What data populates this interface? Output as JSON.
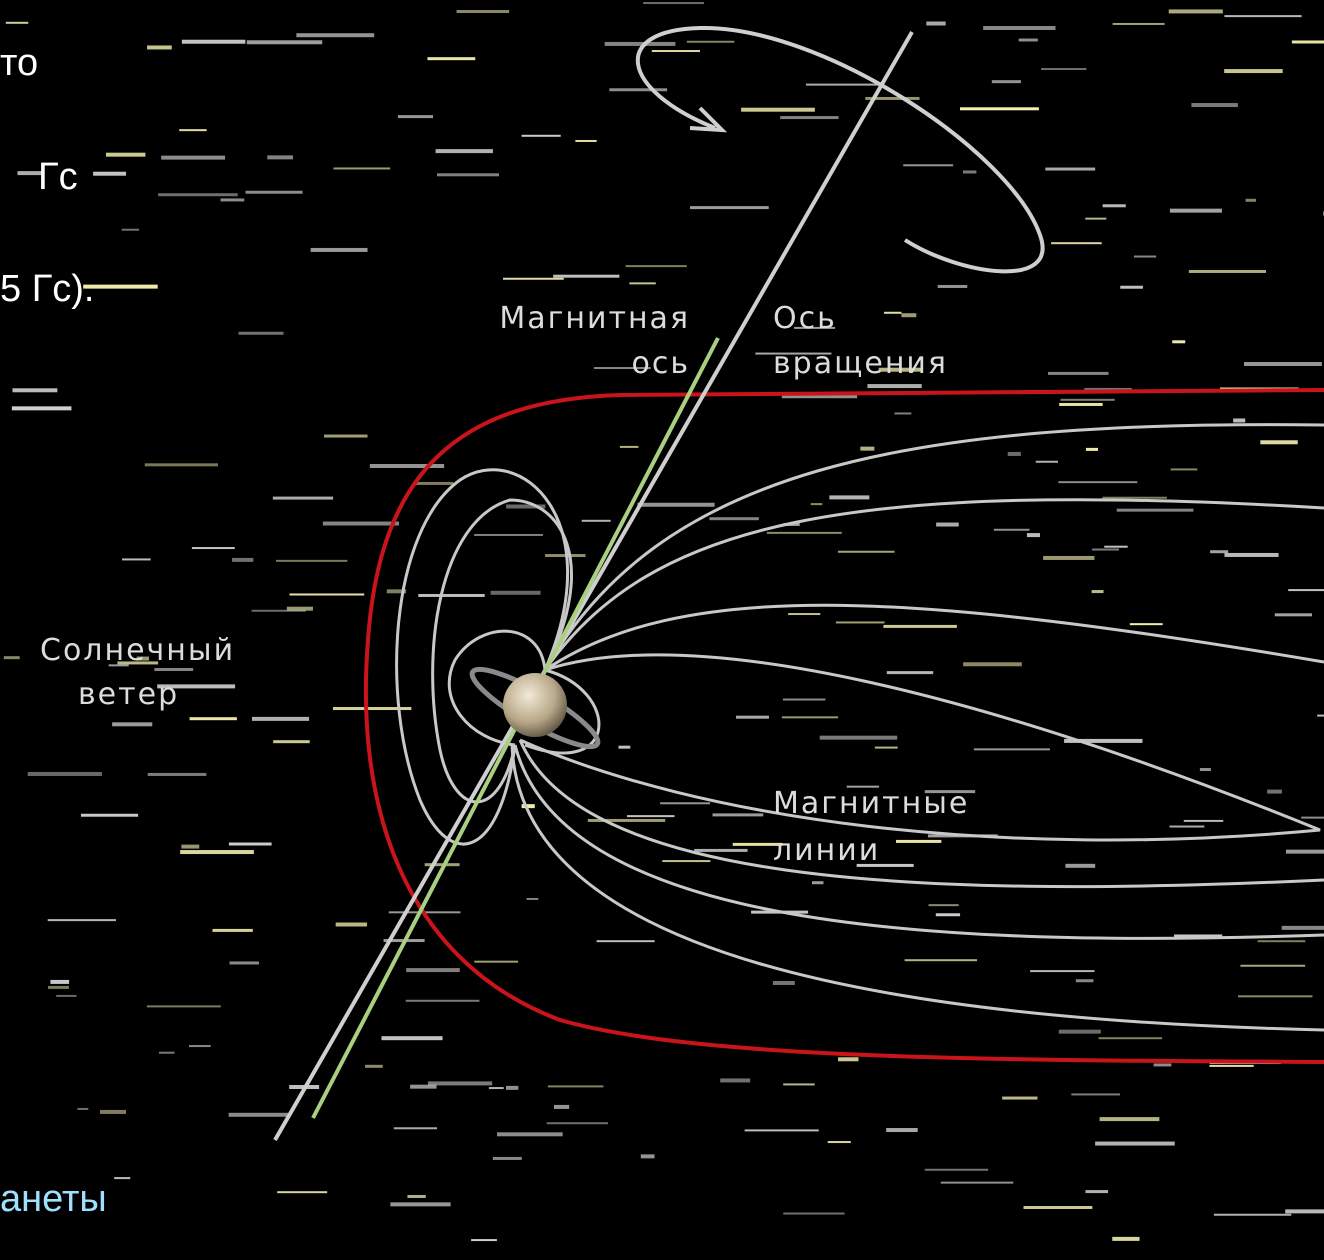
{
  "slide_text": {
    "line1": "то",
    "line2": "Гс",
    "line3": "5 Гс).",
    "footer": "анеты"
  },
  "labels": {
    "magnetic_axis": [
      "Магнитная",
      "ось"
    ],
    "rotation_axis": [
      "Ось",
      "вращения"
    ],
    "solar_wind": [
      "Солнечный",
      "ветер"
    ],
    "field_lines": [
      "Магнитные",
      "линии"
    ]
  }
}
